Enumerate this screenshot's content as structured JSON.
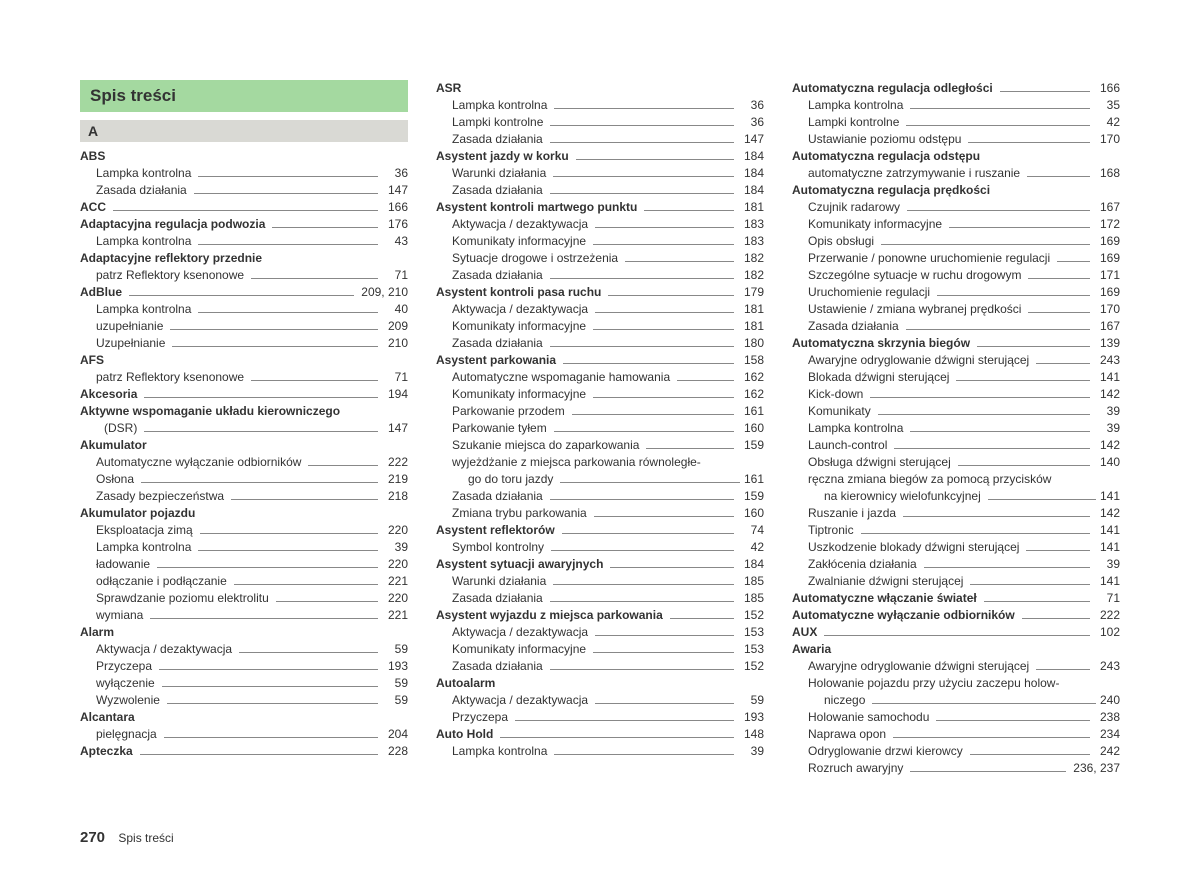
{
  "title": "Spis treści",
  "letter": "A",
  "footer": {
    "page_num": "270",
    "label": "Spis treści"
  },
  "columns": [
    [
      {
        "t": "main",
        "label": "ABS",
        "nopage": true
      },
      {
        "t": "sub",
        "label": "Lampka kontrolna",
        "page": "36"
      },
      {
        "t": "sub",
        "label": "Zasada działania",
        "page": "147"
      },
      {
        "t": "main",
        "label": "ACC",
        "page": "166"
      },
      {
        "t": "main",
        "label": "Adaptacyjna regulacja podwozia",
        "page": "176"
      },
      {
        "t": "sub",
        "label": "Lampka kontrolna",
        "page": "43"
      },
      {
        "t": "main",
        "label": "Adaptacyjne reflektory przednie",
        "nopage": true
      },
      {
        "t": "sub",
        "label": "patrz Reflektory ksenonowe",
        "page": "71"
      },
      {
        "t": "main",
        "label": "AdBlue",
        "page": "209, 210"
      },
      {
        "t": "sub",
        "label": "Lampka kontrolna",
        "page": "40"
      },
      {
        "t": "sub",
        "label": "uzupełnianie",
        "page": "209"
      },
      {
        "t": "sub",
        "label": "Uzupełnianie",
        "page": "210"
      },
      {
        "t": "main",
        "label": "AFS",
        "nopage": true
      },
      {
        "t": "sub",
        "label": "patrz Reflektory ksenonowe",
        "page": "71"
      },
      {
        "t": "main",
        "label": "Akcesoria",
        "page": "194"
      },
      {
        "t": "main",
        "label": "Aktywne wspomaganie układu kierowniczego",
        "nopage": true
      },
      {
        "t": "flow",
        "label": "(DSR)",
        "page": "147"
      },
      {
        "t": "main",
        "label": "Akumulator",
        "nopage": true
      },
      {
        "t": "sub",
        "label": "Automatyczne wyłączanie odbiorników",
        "page": "222"
      },
      {
        "t": "sub",
        "label": "Osłona",
        "page": "219"
      },
      {
        "t": "sub",
        "label": "Zasady bezpieczeństwa",
        "page": "218"
      },
      {
        "t": "main",
        "label": "Akumulator pojazdu",
        "nopage": true
      },
      {
        "t": "sub",
        "label": "Eksploatacja zimą",
        "page": "220"
      },
      {
        "t": "sub",
        "label": "Lampka kontrolna",
        "page": "39"
      },
      {
        "t": "sub",
        "label": "ładowanie",
        "page": "220"
      },
      {
        "t": "sub",
        "label": "odłączanie i podłączanie",
        "page": "221"
      },
      {
        "t": "sub",
        "label": "Sprawdzanie poziomu elektrolitu",
        "page": "220"
      },
      {
        "t": "sub",
        "label": "wymiana",
        "page": "221"
      },
      {
        "t": "main",
        "label": "Alarm",
        "nopage": true
      },
      {
        "t": "sub",
        "label": "Aktywacja / dezaktywacja",
        "page": "59"
      },
      {
        "t": "sub",
        "label": "Przyczepa",
        "page": "193"
      },
      {
        "t": "sub",
        "label": "wyłączenie",
        "page": "59"
      },
      {
        "t": "sub",
        "label": "Wyzwolenie",
        "page": "59"
      },
      {
        "t": "main",
        "label": "Alcantara",
        "nopage": true
      },
      {
        "t": "sub",
        "label": "pielęgnacja",
        "page": "204"
      },
      {
        "t": "main",
        "label": "Apteczka",
        "page": "228"
      }
    ],
    [
      {
        "t": "main",
        "label": "ASR",
        "nopage": true
      },
      {
        "t": "sub",
        "label": "Lampka kontrolna",
        "page": "36"
      },
      {
        "t": "sub",
        "label": "Lampki kontrolne",
        "page": "36"
      },
      {
        "t": "sub",
        "label": "Zasada działania",
        "page": "147"
      },
      {
        "t": "main",
        "label": "Asystent jazdy w korku",
        "page": "184"
      },
      {
        "t": "sub",
        "label": "Warunki działania",
        "page": "184"
      },
      {
        "t": "sub",
        "label": "Zasada działania",
        "page": "184"
      },
      {
        "t": "main",
        "label": "Asystent kontroli martwego punktu",
        "page": "181"
      },
      {
        "t": "sub",
        "label": "Aktywacja / dezaktywacja",
        "page": "183"
      },
      {
        "t": "sub",
        "label": "Komunikaty informacyjne",
        "page": "183"
      },
      {
        "t": "sub",
        "label": "Sytuacje drogowe i ostrzeżenia",
        "page": "182"
      },
      {
        "t": "sub",
        "label": "Zasada działania",
        "page": "182"
      },
      {
        "t": "main",
        "label": "Asystent kontroli pasa ruchu",
        "page": "179"
      },
      {
        "t": "sub",
        "label": "Aktywacja / dezaktywacja",
        "page": "181"
      },
      {
        "t": "sub",
        "label": "Komunikaty informacyjne",
        "page": "181"
      },
      {
        "t": "sub",
        "label": "Zasada działania",
        "page": "180"
      },
      {
        "t": "main",
        "label": "Asystent parkowania",
        "page": "158"
      },
      {
        "t": "sub",
        "label": "Automatyczne wspomaganie hamowania",
        "page": "162"
      },
      {
        "t": "sub",
        "label": "Komunikaty informacyjne",
        "page": "162"
      },
      {
        "t": "sub",
        "label": "Parkowanie przodem",
        "page": "161"
      },
      {
        "t": "sub",
        "label": "Parkowanie tyłem",
        "page": "160"
      },
      {
        "t": "sub",
        "label": "Szukanie miejsca do zaparkowania",
        "page": "159"
      },
      {
        "t": "sub",
        "label": "wyjeżdżanie z miejsca parkowania równoległe-",
        "nopage": true
      },
      {
        "t": "wrap",
        "label": "go do toru jazdy",
        "page": "161"
      },
      {
        "t": "sub",
        "label": "Zasada działania",
        "page": "159"
      },
      {
        "t": "sub",
        "label": "Zmiana trybu parkowania",
        "page": "160"
      },
      {
        "t": "main",
        "label": "Asystent reflektorów",
        "page": "74"
      },
      {
        "t": "sub",
        "label": "Symbol kontrolny",
        "page": "42"
      },
      {
        "t": "main",
        "label": "Asystent sytuacji awaryjnych",
        "page": "184"
      },
      {
        "t": "sub",
        "label": "Warunki działania",
        "page": "185"
      },
      {
        "t": "sub",
        "label": "Zasada działania",
        "page": "185"
      },
      {
        "t": "main",
        "label": "Asystent wyjazdu z miejsca parkowania",
        "page": "152"
      },
      {
        "t": "sub",
        "label": "Aktywacja / dezaktywacja",
        "page": "153"
      },
      {
        "t": "sub",
        "label": "Komunikaty informacyjne",
        "page": "153"
      },
      {
        "t": "sub",
        "label": "Zasada działania",
        "page": "152"
      },
      {
        "t": "main",
        "label": "Autoalarm",
        "nopage": true
      },
      {
        "t": "sub",
        "label": "Aktywacja / dezaktywacja",
        "page": "59"
      },
      {
        "t": "sub",
        "label": "Przyczepa",
        "page": "193"
      },
      {
        "t": "main",
        "label": "Auto Hold",
        "page": "148"
      },
      {
        "t": "sub",
        "label": "Lampka kontrolna",
        "page": "39"
      }
    ],
    [
      {
        "t": "main",
        "label": "Automatyczna regulacja odległości",
        "page": "166"
      },
      {
        "t": "sub",
        "label": "Lampka kontrolna",
        "page": "35"
      },
      {
        "t": "sub",
        "label": "Lampki kontrolne",
        "page": "42"
      },
      {
        "t": "sub",
        "label": "Ustawianie poziomu odstępu",
        "page": "170"
      },
      {
        "t": "main",
        "label": "Automatyczna regulacja odstępu",
        "nopage": true
      },
      {
        "t": "sub",
        "label": "automatyczne zatrzymywanie i ruszanie",
        "page": "168"
      },
      {
        "t": "main",
        "label": "Automatyczna regulacja prędkości",
        "nopage": true
      },
      {
        "t": "sub",
        "label": "Czujnik radarowy",
        "page": "167"
      },
      {
        "t": "sub",
        "label": "Komunikaty informacyjne",
        "page": "172"
      },
      {
        "t": "sub",
        "label": "Opis obsługi",
        "page": "169"
      },
      {
        "t": "sub",
        "label": "Przerwanie / ponowne uruchomienie regulacji",
        "page": "169"
      },
      {
        "t": "sub",
        "label": "Szczególne sytuacje w ruchu drogowym",
        "page": "171"
      },
      {
        "t": "sub",
        "label": "Uruchomienie regulacji",
        "page": "169"
      },
      {
        "t": "sub",
        "label": "Ustawienie / zmiana wybranej prędkości",
        "page": "170"
      },
      {
        "t": "sub",
        "label": "Zasada działania",
        "page": "167"
      },
      {
        "t": "main",
        "label": "Automatyczna skrzynia biegów",
        "page": "139"
      },
      {
        "t": "sub",
        "label": "Awaryjne odryglowanie dźwigni sterującej",
        "page": "243"
      },
      {
        "t": "sub",
        "label": "Blokada dźwigni sterującej",
        "page": "141"
      },
      {
        "t": "sub",
        "label": "Kick-down",
        "page": "142"
      },
      {
        "t": "sub",
        "label": "Komunikaty",
        "page": "39"
      },
      {
        "t": "sub",
        "label": "Lampka kontrolna",
        "page": "39"
      },
      {
        "t": "sub",
        "label": "Launch-control",
        "page": "142"
      },
      {
        "t": "sub",
        "label": "Obsługa dźwigni sterującej",
        "page": "140"
      },
      {
        "t": "sub",
        "label": "ręczna zmiana biegów za pomocą przycisków",
        "nopage": true
      },
      {
        "t": "wrap",
        "label": "na kierownicy wielofunkcyjnej",
        "page": "141"
      },
      {
        "t": "sub",
        "label": "Ruszanie i jazda",
        "page": "142"
      },
      {
        "t": "sub",
        "label": "Tiptronic",
        "page": "141"
      },
      {
        "t": "sub",
        "label": "Uszkodzenie blokady dźwigni sterującej",
        "page": "141"
      },
      {
        "t": "sub",
        "label": "Zakłócenia działania",
        "page": "39"
      },
      {
        "t": "sub",
        "label": "Zwalnianie dźwigni sterującej",
        "page": "141"
      },
      {
        "t": "main",
        "label": "Automatyczne włączanie świateł",
        "page": "71"
      },
      {
        "t": "main",
        "label": "Automatyczne wyłączanie odbiorników",
        "page": "222"
      },
      {
        "t": "main",
        "label": "AUX",
        "page": "102"
      },
      {
        "t": "main",
        "label": "Awaria",
        "nopage": true
      },
      {
        "t": "sub",
        "label": "Awaryjne odryglowanie dźwigni sterującej",
        "page": "243"
      },
      {
        "t": "sub",
        "label": "Holowanie pojazdu przy użyciu zaczepu holow-",
        "nopage": true
      },
      {
        "t": "wrap",
        "label": "niczego",
        "page": "240"
      },
      {
        "t": "sub",
        "label": "Holowanie samochodu",
        "page": "238"
      },
      {
        "t": "sub",
        "label": "Naprawa opon",
        "page": "234"
      },
      {
        "t": "sub",
        "label": "Odryglowanie drzwi kierowcy",
        "page": "242"
      },
      {
        "t": "sub",
        "label": "Rozruch awaryjny",
        "page": "236, 237"
      }
    ]
  ]
}
